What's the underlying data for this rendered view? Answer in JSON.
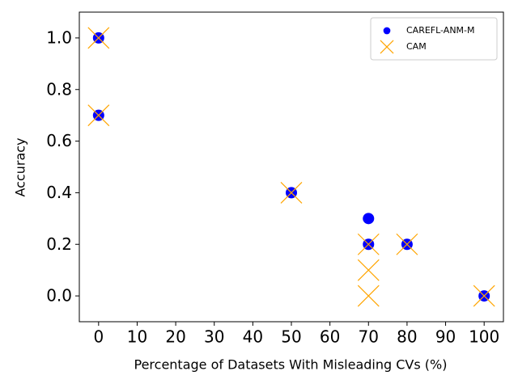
{
  "chart_data": {
    "type": "scatter",
    "xlabel": "Percentage of Datasets With Misleading CVs (%)",
    "ylabel": "Accuracy",
    "xlim": [
      -5,
      105
    ],
    "xticks": [
      0,
      10,
      20,
      30,
      40,
      50,
      60,
      70,
      80,
      90,
      100
    ],
    "ylim": [
      -0.1,
      1.1
    ],
    "yticks": [
      {
        "value": 0,
        "label": "0.0"
      },
      0.2,
      0.4,
      0.6,
      0.8,
      {
        "value": 1,
        "label": "1.0"
      }
    ],
    "legend": "upper right",
    "series": [
      {
        "name": "CAREFL-ANM-M",
        "color": "#0000ff",
        "marker": "circle",
        "x": [
          0,
          0,
          50,
          70,
          70,
          80,
          100
        ],
        "values": [
          1.0,
          0.7,
          0.4,
          0.3,
          0.2,
          0.2,
          0.0
        ]
      },
      {
        "name": "CAM",
        "color": "#ffa500",
        "marker": "x",
        "x": [
          0,
          0,
          50,
          70,
          70,
          70,
          80,
          100
        ],
        "values": [
          1.0,
          0.7,
          0.4,
          0.2,
          0.1,
          0.0,
          0.2,
          0.0
        ]
      }
    ]
  }
}
